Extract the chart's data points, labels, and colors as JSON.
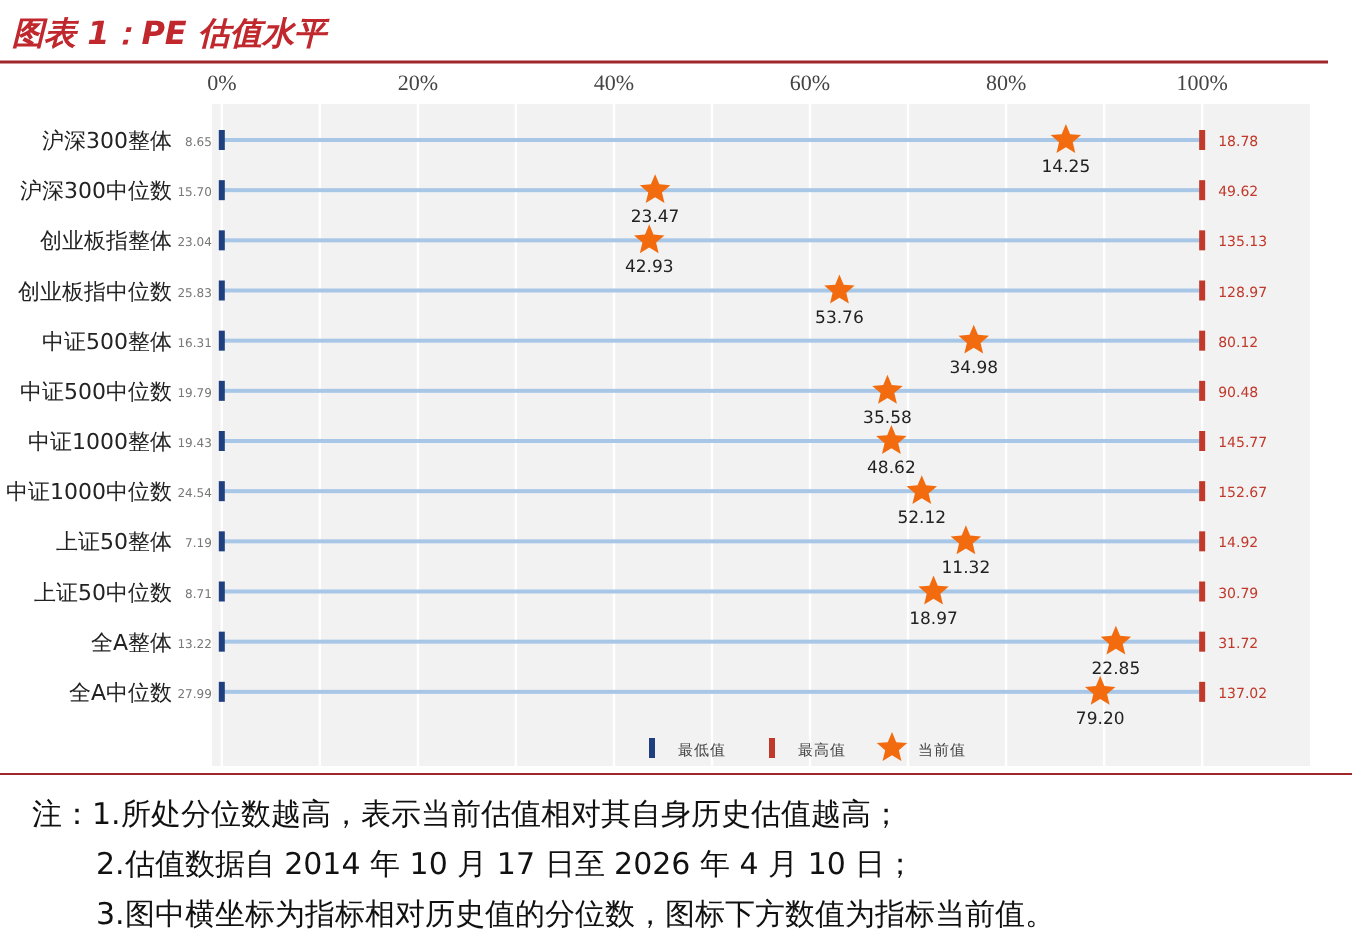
{
  "chart_data": {
    "type": "bar",
    "orientation": "horizontal",
    "title": "图表 1：PE 估值水平",
    "categories": [
      "沪深300整体",
      "沪深300中位数",
      "创业板指整体",
      "创业板指中位数",
      "中证500整体",
      "中证500中位数",
      "中证1000整体",
      "中证1000中位数",
      "上证50整体",
      "上证50中位数",
      "全A整体",
      "全A中位数"
    ],
    "xlim": [
      -1,
      111
    ],
    "xticks": [
      {
        "value": 0,
        "label": "0%"
      },
      {
        "value": 10,
        "label": null
      },
      {
        "value": 20,
        "label": "20%"
      },
      {
        "value": 30,
        "label": null
      },
      {
        "value": 40,
        "label": "40%"
      },
      {
        "value": 50,
        "label": null
      },
      {
        "value": 60,
        "label": "60%"
      },
      {
        "value": 70,
        "label": null
      },
      {
        "value": 80,
        "label": "80%"
      },
      {
        "value": 90,
        "label": null
      },
      {
        "value": 100,
        "label": "100%"
      }
    ],
    "grid": "x",
    "legend": "bottom",
    "series": [
      {
        "color": "#a8c6e6",
        "base": [
          0,
          0,
          0,
          0,
          0,
          0,
          0,
          0,
          0,
          0,
          0,
          0
        ],
        "values": [
          100,
          100,
          100,
          100,
          100,
          100,
          100,
          100,
          100,
          100,
          100,
          100
        ]
      },
      {
        "name": "最低值",
        "type": "scatter",
        "color": "#1f3f7f",
        "values": [
          0,
          0,
          0,
          0,
          0,
          0,
          0,
          0,
          0,
          0,
          0,
          0
        ]
      },
      {
        "name": "最高值",
        "type": "scatter",
        "color": "#c0392b",
        "values": [
          100,
          100,
          100,
          100,
          100,
          100,
          100,
          100,
          100,
          100,
          100,
          100
        ]
      },
      {
        "name": "当前值",
        "type": "scatter",
        "marker": "star",
        "color": "#f26b0f",
        "values": [
          86.1,
          44.2,
          43.6,
          63.0,
          76.7,
          67.9,
          68.3,
          71.4,
          75.9,
          72.6,
          91.2,
          89.6
        ]
      }
    ],
    "annotations": [
      {
        "text": "8.65",
        "x": 0,
        "y": "沪深300整体"
      },
      {
        "text": "15.70",
        "x": 0,
        "y": "沪深300中位数"
      },
      {
        "text": "23.04",
        "x": 0,
        "y": "创业板指整体"
      },
      {
        "text": "25.83",
        "x": 0,
        "y": "创业板指中位数"
      },
      {
        "text": "16.31",
        "x": 0,
        "y": "中证500整体"
      },
      {
        "text": "19.79",
        "x": 0,
        "y": "中证500中位数"
      },
      {
        "text": "19.43",
        "x": 0,
        "y": "中证1000整体"
      },
      {
        "text": "24.54",
        "x": 0,
        "y": "中证1000中位数"
      },
      {
        "text": "7.19",
        "x": 0,
        "y": "上证50整体"
      },
      {
        "text": "8.71",
        "x": 0,
        "y": "上证50中位数"
      },
      {
        "text": "13.22",
        "x": 0,
        "y": "全A整体"
      },
      {
        "text": "27.99",
        "x": 0,
        "y": "全A中位数"
      },
      {
        "text": "18.78",
        "x": 100,
        "y": "沪深300整体"
      },
      {
        "text": "49.62",
        "x": 100,
        "y": "沪深300中位数"
      },
      {
        "text": "135.13",
        "x": 100,
        "y": "创业板指整体"
      },
      {
        "text": "128.97",
        "x": 100,
        "y": "创业板指中位数"
      },
      {
        "text": "80.12",
        "x": 100,
        "y": "中证500整体"
      },
      {
        "text": "90.48",
        "x": 100,
        "y": "中证500中位数"
      },
      {
        "text": "145.77",
        "x": 100,
        "y": "中证1000整体"
      },
      {
        "text": "152.67",
        "x": 100,
        "y": "中证1000中位数"
      },
      {
        "text": "14.92",
        "x": 100,
        "y": "上证50整体"
      },
      {
        "text": "30.79",
        "x": 100,
        "y": "上证50中位数"
      },
      {
        "text": "31.72",
        "x": 100,
        "y": "全A整体"
      },
      {
        "text": "137.02",
        "x": 100,
        "y": "全A中位数"
      },
      {
        "text": "14.25",
        "x": 86.1,
        "y": "沪深300整体"
      },
      {
        "text": "23.47",
        "x": 44.2,
        "y": "沪深300中位数"
      },
      {
        "text": "42.93",
        "x": 43.6,
        "y": "创业板指整体"
      },
      {
        "text": "53.76",
        "x": 63.0,
        "y": "创业板指中位数"
      },
      {
        "text": "34.98",
        "x": 76.7,
        "y": "中证500整体"
      },
      {
        "text": "35.58",
        "x": 67.9,
        "y": "中证500中位数"
      },
      {
        "text": "48.62",
        "x": 68.3,
        "y": "中证1000整体"
      },
      {
        "text": "52.12",
        "x": 71.4,
        "y": "中证1000中位数"
      },
      {
        "text": "11.32",
        "x": 75.9,
        "y": "上证50整体"
      },
      {
        "text": "18.97",
        "x": 72.6,
        "y": "上证50中位数"
      },
      {
        "text": "22.85",
        "x": 91.2,
        "y": "全A整体"
      },
      {
        "text": "79.20",
        "x": 89.6,
        "y": "全A中位数"
      },
      "注：1.所处分位数越高，表示当前估值相对其自身历史估值越高；",
      "2.估值数据自 2014 年 10 月 17 日至 2026 年 4 月 10 日；",
      "3.图中横坐标为指标相对历史值的分位数，图标下方数值为指标当前值。"
    ]
  }
}
